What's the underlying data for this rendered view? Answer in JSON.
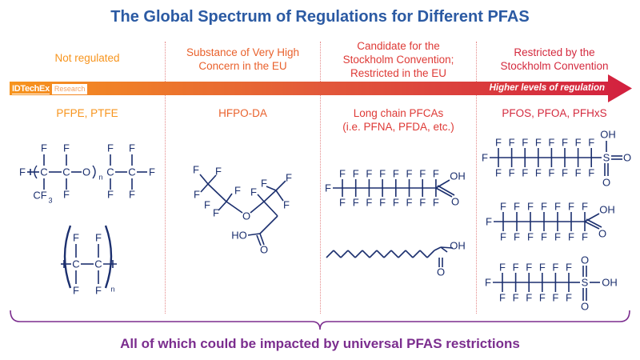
{
  "title": "The Global Spectrum of Regulations for Different PFAS",
  "colors": {
    "title": "#2b5aa3",
    "arrow_start": "#f7941d",
    "arrow_end": "#d2203f",
    "structure": "#1b2f6e",
    "footer": "#7b2d8e"
  },
  "logo": {
    "brand": "IDTechEx",
    "suffix": "Research"
  },
  "arrow_label": "Higher levels of regulation",
  "columns": [
    {
      "header": [
        "Not regulated"
      ],
      "color": "#f7941d",
      "compounds": [
        "PFPE, PTFE"
      ]
    },
    {
      "header": [
        "Substance of Very High",
        "Concern in the EU"
      ],
      "color": "#e9612c",
      "compounds": [
        "HFPO-DA"
      ]
    },
    {
      "header": [
        "Candidate for the",
        "Stockholm Convention;",
        "Restricted in the EU"
      ],
      "color": "#de3a36",
      "compounds": [
        "Long chain PFCAs",
        "(i.e. PFNA, PFDA, etc.)"
      ]
    },
    {
      "header": [
        "Restricted by the",
        "Stockholm Convention"
      ],
      "color": "#d42a3e",
      "compounds": [
        "PFOS, PFOA, PFHxS"
      ]
    }
  ],
  "footer": "All of which could be impacted by universal PFAS restrictions"
}
